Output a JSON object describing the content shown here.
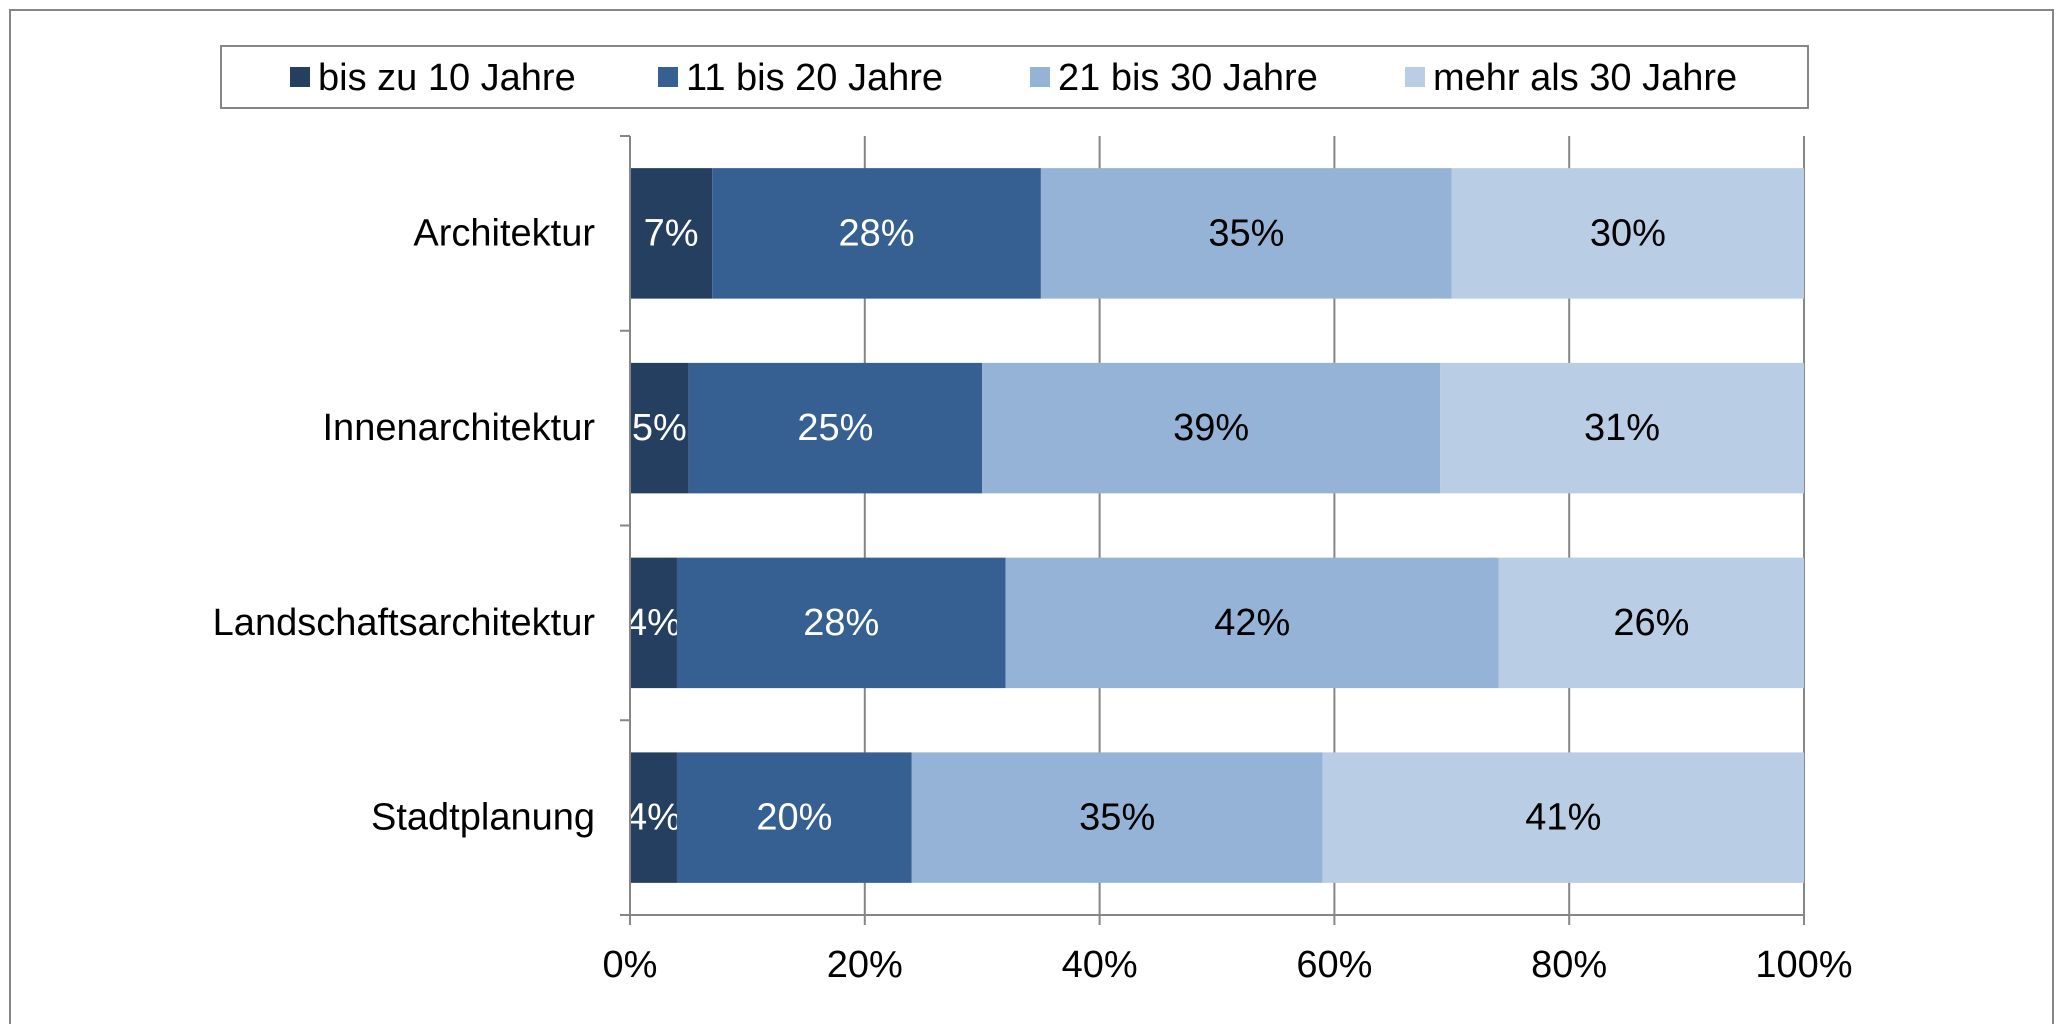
{
  "chart_data": {
    "type": "stacked-bar-horizontal",
    "categories": [
      "Architektur",
      "Innenarchitektur",
      "Landschaftsarchitektur",
      "Stadtplanung"
    ],
    "series": [
      {
        "name": "bis zu 10 Jahre",
        "color": "#243f60",
        "values": [
          7,
          5,
          4,
          4
        ],
        "value_labels": [
          "7%",
          "5%",
          "4%",
          "4%"
        ]
      },
      {
        "name": "11 bis 20 Jahre",
        "color": "#366092",
        "values": [
          28,
          25,
          28,
          20
        ],
        "value_labels": [
          "28%",
          "25%",
          "28%",
          "20%"
        ]
      },
      {
        "name": "21 bis 30 Jahre",
        "color": "#95b3d7",
        "values": [
          35,
          39,
          42,
          35
        ],
        "value_labels": [
          "35%",
          "39%",
          "42%",
          "35%"
        ]
      },
      {
        "name": "mehr als 30 Jahre",
        "color": "#b9cde5",
        "values": [
          30,
          31,
          26,
          41
        ],
        "value_labels": [
          "30%",
          "31%",
          "26%",
          "41%"
        ]
      }
    ],
    "xlim": [
      0,
      100
    ],
    "xticks": [
      {
        "value": 0,
        "label": "0%"
      },
      {
        "value": 20,
        "label": "20%"
      },
      {
        "value": 40,
        "label": "40%"
      },
      {
        "value": 60,
        "label": "60%"
      },
      {
        "value": 80,
        "label": "80%"
      },
      {
        "value": 100,
        "label": "100%"
      }
    ],
    "grid": true,
    "legend": "top"
  }
}
